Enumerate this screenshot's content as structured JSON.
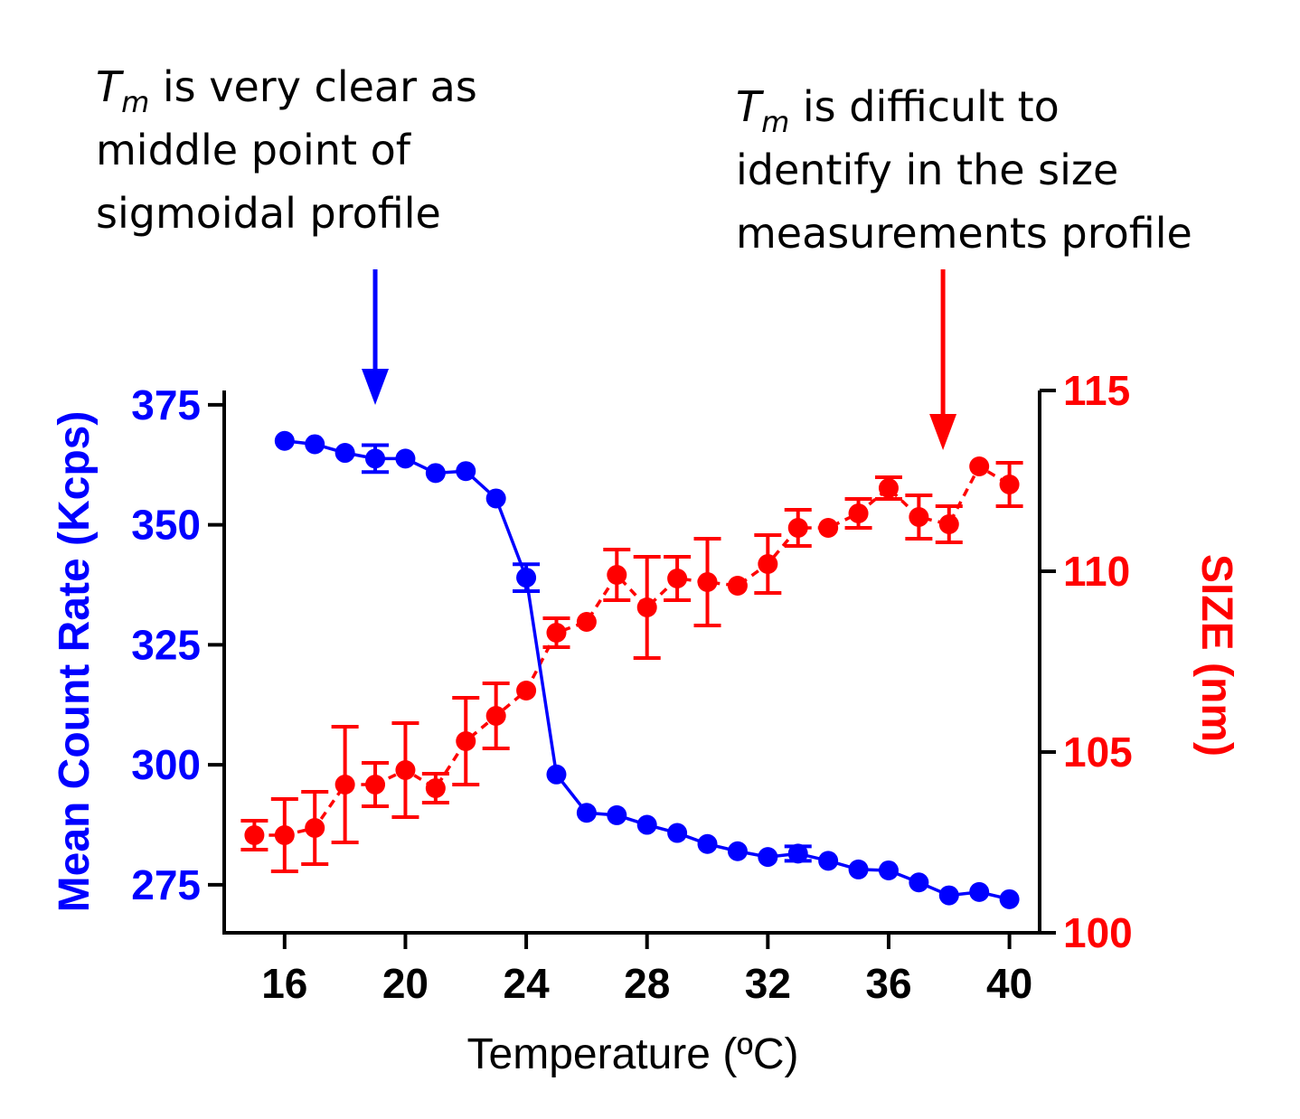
{
  "chart_data": {
    "type": "scatter",
    "xlabel": "Temperature (ºC)",
    "xlim": [
      14,
      41
    ],
    "x_ticks": [
      16,
      20,
      24,
      28,
      32,
      36,
      40
    ],
    "y_left": {
      "label": "Mean Count Rate (Kcps)",
      "lim": [
        265,
        378
      ],
      "ticks": [
        275,
        300,
        325,
        350,
        375
      ],
      "color": "#0000ff"
    },
    "y_right": {
      "label": "SIZE (nm)",
      "lim": [
        100,
        115
      ],
      "ticks": [
        100,
        105,
        110,
        115
      ],
      "color": "#ff0000"
    },
    "series": [
      {
        "name": "Mean Count Rate",
        "axis": "left",
        "color": "#0000ff",
        "line": "solid",
        "x": [
          16,
          17,
          18,
          19,
          20,
          21,
          22,
          23,
          24,
          25,
          26,
          27,
          28,
          29,
          30,
          31,
          32,
          33,
          34,
          35,
          36,
          37,
          38,
          39,
          40
        ],
        "y": [
          367.5,
          366.8,
          365.0,
          363.8,
          363.8,
          360.8,
          361.2,
          355.5,
          339.0,
          298.0,
          290.0,
          289.5,
          287.5,
          285.8,
          283.5,
          282.0,
          280.8,
          281.5,
          280.0,
          278.2,
          278.0,
          275.5,
          272.8,
          273.5,
          272.0
        ],
        "err": [
          0,
          0,
          0,
          2.8,
          0,
          0,
          0,
          0,
          2.8,
          0,
          0,
          0,
          0,
          0,
          0,
          0,
          0,
          1.5,
          0,
          0,
          0,
          0,
          0,
          0,
          0
        ]
      },
      {
        "name": "SIZE",
        "axis": "right",
        "color": "#ff0000",
        "line": "dashed",
        "x": [
          15,
          16,
          17,
          18,
          19,
          20,
          21,
          22,
          23,
          24,
          25,
          26,
          27,
          28,
          29,
          30,
          31,
          32,
          33,
          34,
          35,
          36,
          37,
          38,
          39,
          40
        ],
        "y": [
          102.7,
          102.7,
          102.9,
          104.1,
          104.1,
          104.5,
          104.0,
          105.3,
          106.0,
          106.7,
          108.3,
          108.6,
          109.9,
          109.0,
          109.8,
          109.7,
          109.6,
          110.2,
          111.2,
          111.2,
          111.6,
          112.3,
          111.5,
          111.3,
          112.9,
          112.4
        ],
        "err": [
          0.4,
          1.0,
          1.0,
          1.6,
          0.6,
          1.3,
          0.4,
          1.2,
          0.9,
          0,
          0.4,
          0,
          0.7,
          1.4,
          0.6,
          1.2,
          0,
          0.8,
          0.5,
          0,
          0.4,
          0.3,
          0.6,
          0.5,
          0,
          0.6
        ]
      }
    ],
    "annotations": {
      "left": {
        "symbol": "T",
        "subscript": "m",
        "lines": [
          " is very clear as",
          "middle point of",
          "sigmoidal profile"
        ],
        "arrow_color": "#0000ff",
        "arrow_x": 19
      },
      "right": {
        "symbol": "T",
        "subscript": "m",
        "lines": [
          " is difficult to",
          "identify in the size",
          "measurements profile"
        ],
        "arrow_color": "#ff0000",
        "arrow_x": 37.8
      }
    }
  }
}
